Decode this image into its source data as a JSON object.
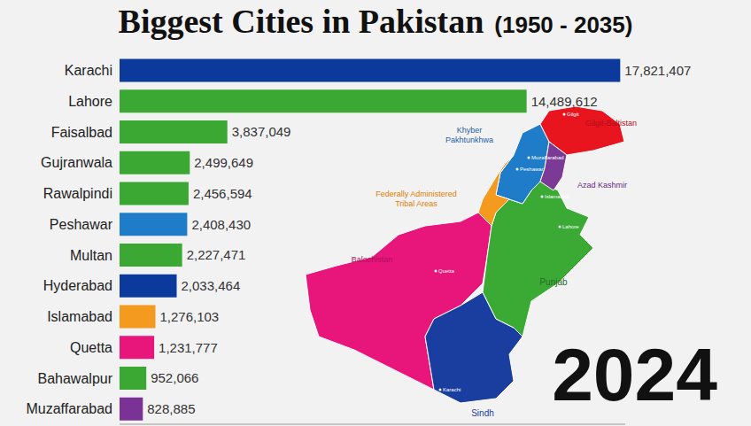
{
  "chart_data": {
    "type": "bar",
    "title": "Biggest Cities in Pakistan",
    "subtitle": "(1950 - 2035)",
    "annotation": "2024",
    "orientation": "horizontal",
    "data_labels": true,
    "tick_labels": "y",
    "grid": false,
    "categories": [
      "Karachi",
      "Lahore",
      "Faisalbad",
      "Gujranwala",
      "Rawalpindi",
      "Peshawar",
      "Multan",
      "Hyderabad",
      "Islamabad",
      "Quetta",
      "Bahawalpur",
      "Muzaffarabad"
    ],
    "values": [
      17821407,
      14489612,
      3837049,
      2499649,
      2456594,
      2408430,
      2227471,
      2033464,
      1276103,
      1231777,
      952066,
      828885
    ],
    "value_labels": [
      "17,821,407",
      "14,489,612",
      "3,837,049",
      "2,499,649",
      "2,456,594",
      "2,408,430",
      "2,227,471",
      "2,033,464",
      "1,276,103",
      "1,231,777",
      "952,066",
      "828,885"
    ],
    "colors": [
      "#0b3a9c",
      "#3aa832",
      "#3aa832",
      "#3aa832",
      "#3aa832",
      "#1e7cc8",
      "#3aa832",
      "#0b3a9c",
      "#f39a1f",
      "#e8157a",
      "#3aa832",
      "#7a3296"
    ],
    "xlim": [
      0,
      18000000
    ],
    "map_labels": {
      "regions": [
        [
          "Khyber",
          "Pakhtunkhwa"
        ],
        [
          "Gilgit-Baltistan"
        ],
        [
          "Federally Administered",
          "Tribal Areas"
        ],
        [
          "Azad Kashmir"
        ],
        [
          "Balochistan"
        ],
        [
          "Punjab"
        ],
        [
          "Sindh"
        ]
      ],
      "cities": [
        "Gilgit",
        "Muzaffarabad",
        "Peshawar",
        "Islamabad",
        "Lahore",
        "Quetta",
        "Karachi"
      ]
    }
  }
}
